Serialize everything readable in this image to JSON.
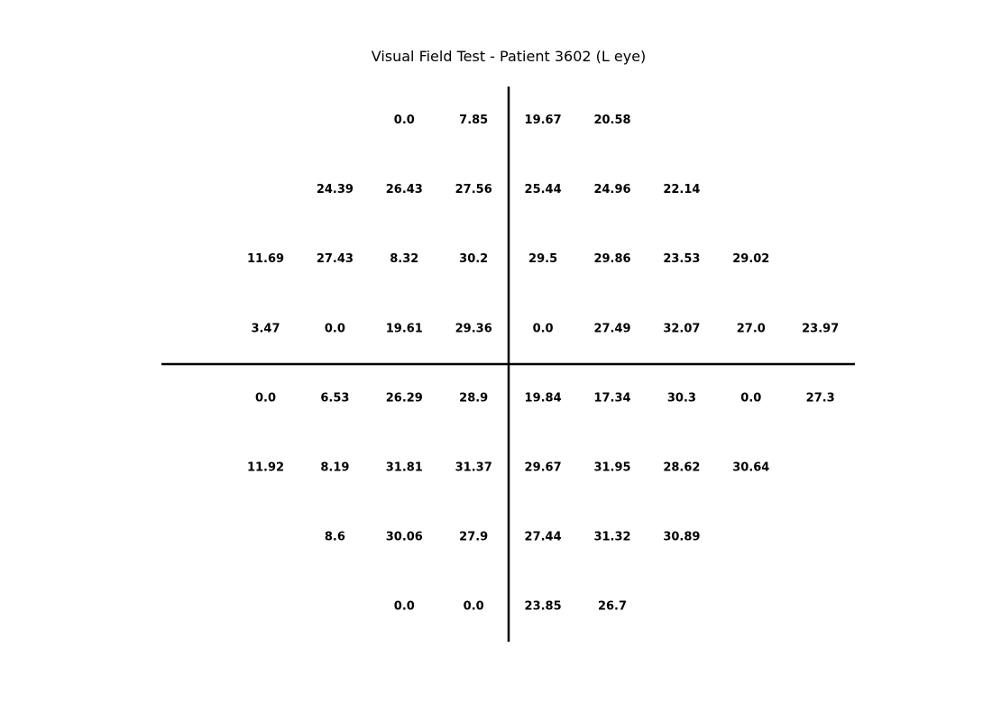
{
  "chart_data": {
    "type": "table",
    "title": "Visual Field Test - Patient 3602 (L eye)",
    "eye": "L",
    "columns_count": 9,
    "grid": [
      [
        null,
        null,
        0.0,
        7.85,
        19.67,
        20.58,
        null,
        null,
        null
      ],
      [
        null,
        24.39,
        26.43,
        27.56,
        25.44,
        24.96,
        22.14,
        null,
        null
      ],
      [
        11.69,
        27.43,
        8.32,
        30.2,
        29.5,
        29.86,
        23.53,
        29.02,
        null
      ],
      [
        3.47,
        0.0,
        19.61,
        29.36,
        0.0,
        27.49,
        32.07,
        27.0,
        23.97
      ],
      [
        0.0,
        6.53,
        26.29,
        28.9,
        19.84,
        17.34,
        30.3,
        0.0,
        27.3
      ],
      [
        11.92,
        8.19,
        31.81,
        31.37,
        29.67,
        31.95,
        28.62,
        30.64,
        null
      ],
      [
        null,
        8.6,
        30.06,
        27.9,
        27.44,
        31.32,
        30.89,
        null,
        null
      ],
      [
        null,
        null,
        0.0,
        0.0,
        23.85,
        26.7,
        null,
        null,
        null
      ]
    ],
    "grid_lines": false,
    "axes_visible": false
  }
}
